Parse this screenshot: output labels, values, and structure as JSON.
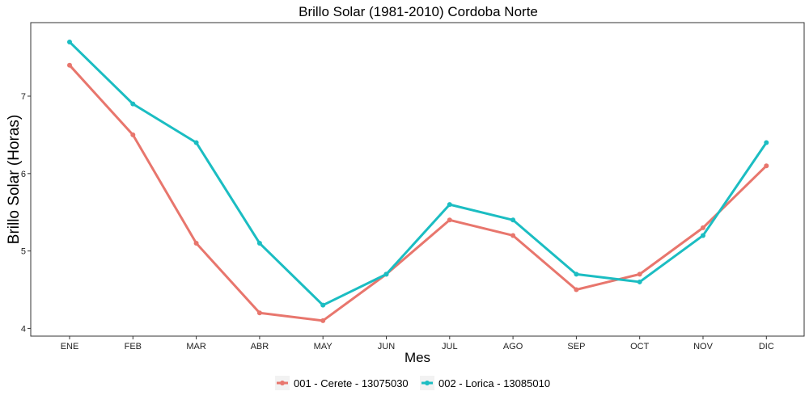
{
  "chart_data": {
    "type": "line",
    "title": "Brillo Solar (1981-2010)  Cordoba Norte",
    "xlabel": "Mes",
    "ylabel": "Brillo Solar (Horas)",
    "categories": [
      "ENE",
      "FEB",
      "MAR",
      "ABR",
      "MAY",
      "JUN",
      "JUL",
      "AGO",
      "SEP",
      "OCT",
      "NOV",
      "DIC"
    ],
    "y_ticks": [
      4,
      5,
      6,
      7
    ],
    "ylim": [
      3.9,
      7.95
    ],
    "grid": false,
    "legend_position": "bottom",
    "series": [
      {
        "name": "001 - Cerete - 13075030",
        "color": "#e8766d",
        "values": [
          7.4,
          6.5,
          5.1,
          4.2,
          4.1,
          4.7,
          5.4,
          5.2,
          4.5,
          4.7,
          5.3,
          6.1
        ]
      },
      {
        "name": "002 - Lorica - 13085010",
        "color": "#1bbdc2",
        "values": [
          7.7,
          6.9,
          6.4,
          5.1,
          4.3,
          4.7,
          5.6,
          5.4,
          4.7,
          4.6,
          5.2,
          6.4
        ]
      }
    ]
  }
}
